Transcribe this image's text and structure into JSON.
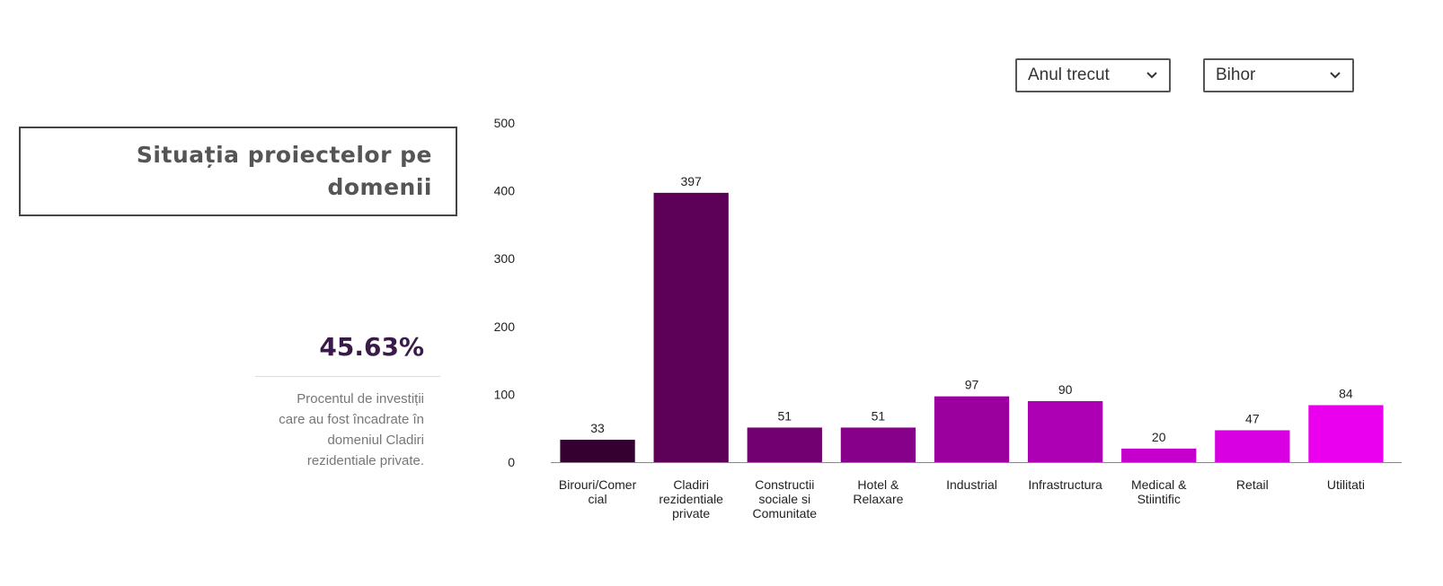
{
  "filters": {
    "period": "Anul trecut",
    "region": "Bihor"
  },
  "panel": {
    "title": "Situația proiectelor pe domenii",
    "stat_value": "45.63%",
    "stat_description": "Procentul de investiții care au fost încadrate în domeniul Cladiri rezidentiale private."
  },
  "chart_data": {
    "type": "bar",
    "categories": [
      "Birouri/Comercial",
      "Cladiri rezidentiale private",
      "Constructii sociale si Comunitate",
      "Hotel & Relaxare",
      "Industrial",
      "Infrastructura",
      "Medical & Stiintific",
      "Retail",
      "Utilitati"
    ],
    "category_lines": [
      [
        "Birouri/Comer",
        "cial"
      ],
      [
        "Cladiri",
        "rezidentiale",
        "private"
      ],
      [
        "Constructii",
        "sociale si",
        "Comunitate"
      ],
      [
        "Hotel &",
        "Relaxare"
      ],
      [
        "Industrial"
      ],
      [
        "Infrastructura"
      ],
      [
        "Medical &",
        "Stiintific"
      ],
      [
        "Retail"
      ],
      [
        "Utilitati"
      ]
    ],
    "values": [
      33,
      397,
      51,
      51,
      97,
      90,
      20,
      47,
      84
    ],
    "colors": [
      "#33002f",
      "#5c0058",
      "#720070",
      "#87008a",
      "#9b009f",
      "#ad00b4",
      "#c600cc",
      "#d800e0",
      "#ea00ef"
    ],
    "ylim": [
      0,
      500
    ],
    "yticks": [
      0,
      100,
      200,
      300,
      400,
      500
    ],
    "grid": false,
    "data_labels": true
  }
}
